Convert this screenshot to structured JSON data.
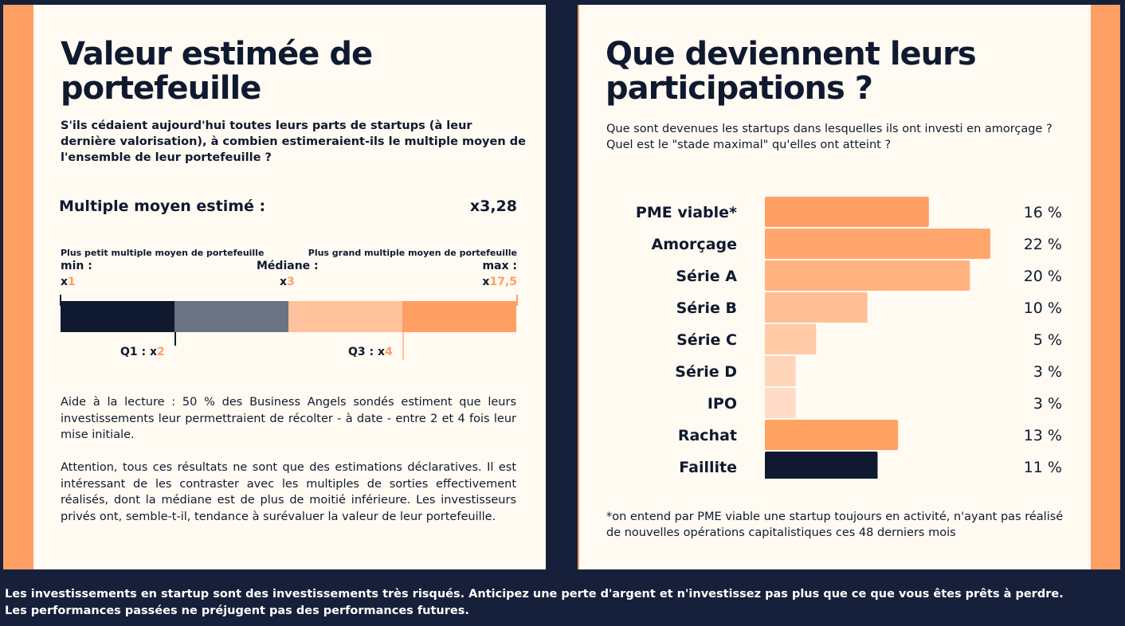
{
  "left": {
    "title_line1": "Valeur estimée de",
    "title_line2": "portefeuille",
    "intro": "S'ils cédaient aujourd'hui toutes leurs parts de startups (à leur dernière valorisation), à combien estimeraient-ils le multiple moyen de l'ensemble de leur portefeuille ?",
    "multiple_label": "Multiple moyen estimé :",
    "multiple_value": "x3,28",
    "min_caption": "Plus petit multiple moyen de portefeuille",
    "min_label": "min :",
    "min_prefix": "x",
    "min_value": "1",
    "median_label": "Médiane :",
    "median_prefix": "x",
    "median_value": "3",
    "max_caption": "Plus grand multiple moyen de portefeuille",
    "max_label": "max :",
    "max_prefix": "x",
    "max_value": "17,5",
    "q1_label": "Q1 : x",
    "q1_value": "2",
    "q3_label": "Q3 : x",
    "q3_value": "4",
    "quartile_colors": [
      "#0f1a30",
      "#6b7282",
      "#ffc29c",
      "#ff9f64"
    ],
    "reading_aid": "Aide à la lecture : 50 % des Business Angels sondés estiment que leurs investissements leur permettraient de récolter - à date - entre 2 et 4 fois leur mise initiale.",
    "warning": "Attention, tous ces résultats ne sont que des estimations déclaratives. Il est intéressant de les contraster avec les multiples de sorties effectivement réalisés, dont la médiane est de plus de moitié inférieure. Les investisseurs privés ont, semble-t-il, tendance à surévaluer la valeur de leur portefeuille."
  },
  "right": {
    "title_line1": "Que deviennent leurs",
    "title_line2": "participations ?",
    "intro": "Que sont devenues les startups dans lesquelles ils ont investi en amorçage ? Quel est le \"stade maximal\" qu'elles ont atteint ?",
    "footnote": "*on entend par PME viable une startup toujours en activité, n'ayant pas réalisé de nouvelles opérations capitalistiques ces 48 derniers mois"
  },
  "chart_data": {
    "type": "bar",
    "orientation": "horizontal",
    "categories": [
      "PME viable*",
      "Amorçage",
      "Série A",
      "Série B",
      "Série C",
      "Série D",
      "IPO",
      "Rachat",
      "Faillite"
    ],
    "values": [
      16,
      22,
      20,
      10,
      5,
      3,
      3,
      13,
      11
    ],
    "value_labels": [
      "16 %",
      "22 %",
      "20 %",
      "10 %",
      "5 %",
      "3 %",
      "3 %",
      "13 %",
      "11 %"
    ],
    "colors": [
      "#ff9f64",
      "#ffa76e",
      "#ffb27e",
      "#ffbf95",
      "#ffcaa6",
      "#ffd5ba",
      "#ffdac6",
      "#ffa262",
      "#0f1a30"
    ],
    "xlim": [
      0,
      22
    ]
  },
  "footer": {
    "line1": "Les investissements en startup sont des investissements très risqués. Anticipez une perte d'argent et n'investissez pas plus que ce que vous êtes prêts à perdre.",
    "line2": "Les performances passées ne préjugent pas des performances futures."
  }
}
